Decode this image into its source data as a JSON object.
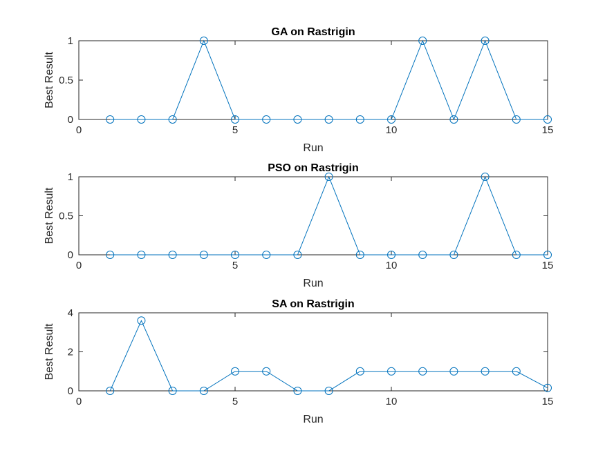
{
  "chart_data": [
    {
      "type": "line",
      "title": "GA on Rastrigin",
      "xlabel": "Run",
      "ylabel": "Best Result",
      "xlim": [
        0,
        15
      ],
      "ylim": [
        0,
        1
      ],
      "xticks": [
        0,
        5,
        10,
        15
      ],
      "yticks": [
        0,
        0.5,
        1
      ],
      "marker": "circle",
      "color": "#0072BD",
      "x": [
        1,
        2,
        3,
        4,
        5,
        6,
        7,
        8,
        9,
        10,
        11,
        12,
        13,
        14,
        15
      ],
      "y": [
        0,
        0,
        0,
        1,
        0,
        0,
        0,
        0,
        0,
        0,
        1,
        0,
        1,
        0,
        0
      ]
    },
    {
      "type": "line",
      "title": "PSO on Rastrigin",
      "xlabel": "Run",
      "ylabel": "Best Result",
      "xlim": [
        0,
        15
      ],
      "ylim": [
        0,
        1
      ],
      "xticks": [
        0,
        5,
        10,
        15
      ],
      "yticks": [
        0,
        0.5,
        1
      ],
      "marker": "circle",
      "color": "#0072BD",
      "x": [
        1,
        2,
        3,
        4,
        5,
        6,
        7,
        8,
        9,
        10,
        11,
        12,
        13,
        14,
        15
      ],
      "y": [
        0,
        0,
        0,
        0,
        0,
        0,
        0,
        1,
        0,
        0,
        0,
        0,
        1,
        0,
        0
      ]
    },
    {
      "type": "line",
      "title": "SA on Rastrigin",
      "xlabel": "Run",
      "ylabel": "Best Result",
      "xlim": [
        0,
        15
      ],
      "ylim": [
        0,
        4
      ],
      "xticks": [
        0,
        5,
        10,
        15
      ],
      "yticks": [
        0,
        2,
        4
      ],
      "marker": "circle",
      "color": "#0072BD",
      "x": [
        1,
        2,
        3,
        4,
        5,
        6,
        7,
        8,
        9,
        10,
        11,
        12,
        13,
        14,
        15
      ],
      "y": [
        0,
        3.6,
        0,
        0,
        1,
        1,
        0,
        0,
        1,
        1,
        1,
        1,
        1,
        1,
        0.15
      ]
    }
  ]
}
